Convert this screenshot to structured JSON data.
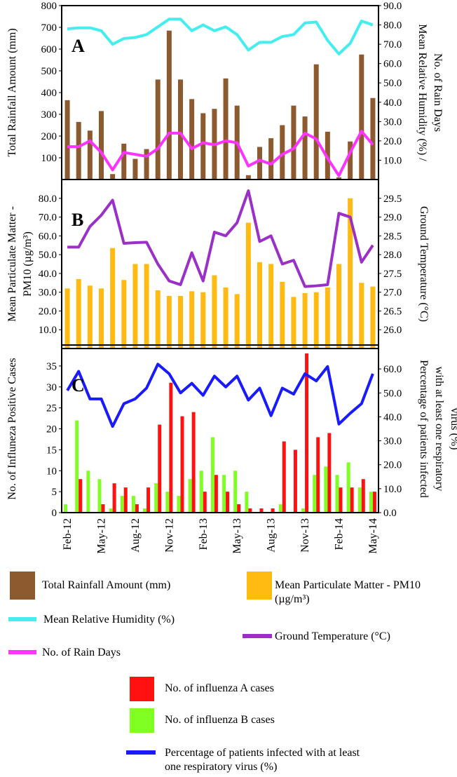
{
  "chart_data": [
    {
      "type": "combo",
      "label": "A",
      "y_label": [
        "Total Rainfall Amount (mm)"
      ],
      "y2_label": [
        "Mean Relative Humidity (%) /",
        "No. of Rain Days"
      ],
      "ylim": [
        0,
        800
      ],
      "yticks": [
        100,
        200,
        300,
        400,
        500,
        600,
        700,
        800
      ],
      "y2lim": [
        0,
        90
      ],
      "y2ticks": [
        {
          "value": 10,
          "label": "10.0"
        },
        {
          "value": 20,
          "label": "20.0"
        },
        {
          "value": 30,
          "label": "30.0"
        },
        {
          "value": 40,
          "label": "40.0"
        },
        {
          "value": 50,
          "label": "50.0"
        },
        {
          "value": 60,
          "label": "60.0"
        },
        {
          "value": 70,
          "label": "70.0"
        },
        {
          "value": 80,
          "label": "80.0"
        },
        {
          "value": 90,
          "label": "90.0"
        }
      ],
      "series": [
        {
          "name": "Total Rainfall Amount (mm)",
          "type": "bar",
          "color": "#8c5a2e",
          "values": [
            365,
            265,
            225,
            315,
            25,
            165,
            95,
            140,
            460,
            685,
            460,
            370,
            305,
            325,
            465,
            340,
            20,
            150,
            190,
            250,
            340,
            290,
            530,
            220,
            10,
            175,
            575,
            375
          ]
        },
        {
          "name": "Mean Relative Humidity (%)",
          "type": "line",
          "axis": "y2",
          "color": "#44eeee",
          "values": [
            78,
            78.5,
            78.5,
            77,
            70,
            73,
            73.5,
            75,
            79,
            83,
            83,
            77,
            80,
            77,
            79,
            75,
            67,
            71,
            71,
            74,
            75,
            81,
            81.5,
            72,
            65,
            70.5,
            82,
            80
          ]
        },
        {
          "name": "No. of Rain Days",
          "type": "line",
          "axis": "y2",
          "color": "#ff33ff",
          "values": [
            17,
            17,
            20,
            14,
            5,
            14,
            13,
            12,
            16,
            24,
            24,
            16,
            19,
            18,
            20,
            19,
            7,
            10,
            8,
            13,
            16,
            24,
            21,
            11,
            2,
            14,
            25,
            18
          ]
        }
      ]
    },
    {
      "type": "combo",
      "label": "B",
      "y_label": [
        "Mean Particulate Matter -",
        "PM10 (µg/m³)"
      ],
      "y2_label": [
        "Ground Temperature (°C)"
      ],
      "ylim": [
        0,
        90
      ],
      "yticks": [
        {
          "value": 10,
          "label": "10.0"
        },
        {
          "value": 20,
          "label": "20.0"
        },
        {
          "value": 30,
          "label": "30.0"
        },
        {
          "value": 40,
          "label": "40.0"
        },
        {
          "value": 50,
          "label": "50.0"
        },
        {
          "value": 60,
          "label": "60.0"
        },
        {
          "value": 70,
          "label": "70.0"
        },
        {
          "value": 80,
          "label": "80.0"
        }
      ],
      "y2lim": [
        25.5,
        30
      ],
      "y2ticks": [
        {
          "value": 26,
          "label": "26.0"
        },
        26.5,
        {
          "value": 27,
          "label": "27.0"
        },
        27.5,
        {
          "value": 28,
          "label": "28.0"
        },
        28.5,
        {
          "value": 29,
          "label": "29.0"
        },
        29.5
      ],
      "series": [
        {
          "name": "Mean Particulate Matter - PM10 (µg/m³)",
          "type": "bar",
          "color": "#ffbb11",
          "values": [
            32,
            37,
            33.5,
            32,
            53.5,
            36.5,
            45,
            45,
            31,
            28,
            28,
            30.5,
            30,
            39,
            32.5,
            29,
            67,
            46,
            45,
            35.5,
            27.5,
            29.5,
            30,
            32.5,
            45,
            80,
            35,
            33
          ]
        },
        {
          "name": "Ground Temperature (°C)",
          "type": "line",
          "axis": "y2",
          "color": "#9b30c8",
          "values": [
            28.2,
            28.2,
            28.75,
            29.05,
            29.45,
            28.3,
            28.32,
            28.33,
            27.75,
            27.3,
            27.2,
            28.05,
            27.3,
            28.6,
            28.5,
            28.85,
            29.7,
            28.35,
            28.5,
            27.75,
            27.85,
            27.15,
            27.17,
            27.2,
            29.1,
            29.0,
            27.8,
            28.25
          ]
        }
      ]
    },
    {
      "type": "combo",
      "label": "C",
      "categories": [
        "Feb-12",
        null,
        null,
        "May-12",
        null,
        null,
        "Aug-12",
        null,
        null,
        "Nov-12",
        null,
        null,
        "Feb-13",
        null,
        null,
        "May-13",
        null,
        null,
        "Aug-13",
        null,
        null,
        "Nov-13",
        null,
        null,
        "Feb-14",
        null,
        null,
        "May-14"
      ],
      "y_label": [
        "No. of Influneza Positive Cases"
      ],
      "y2_label": [
        "Percentage of patients infected",
        "with at least one respiratory",
        "virus (%)"
      ],
      "ylim": [
        0,
        40
      ],
      "yticks": [
        0,
        5,
        10,
        15,
        20,
        25,
        30,
        35
      ],
      "y2lim": [
        0,
        70
      ],
      "y2ticks": [
        {
          "value": 0,
          "label": "0.0"
        },
        {
          "value": 10,
          "label": "10.0"
        },
        {
          "value": 20,
          "label": "20.0"
        },
        {
          "value": 30,
          "label": "30.0"
        },
        {
          "value": 40,
          "label": "40.0"
        },
        {
          "value": 50,
          "label": "50.0"
        },
        {
          "value": 60,
          "label": "60.0"
        }
      ],
      "series": [
        {
          "name": "No. of influenza B cases",
          "type": "bar",
          "color": "#80ff22",
          "values": [
            2,
            22,
            10,
            8,
            1,
            4,
            4,
            1,
            7,
            5,
            4,
            8,
            10,
            18,
            9,
            10,
            5,
            0,
            0,
            2,
            0,
            1,
            9,
            11,
            9,
            12,
            6,
            5
          ]
        },
        {
          "name": "No. of influenza A cases",
          "type": "bar",
          "color": "#ff1111",
          "values": [
            0,
            8,
            0,
            2,
            7,
            6,
            2,
            6,
            21,
            31,
            23,
            24,
            5,
            9,
            5,
            2,
            1,
            1,
            1,
            17,
            15,
            38,
            18,
            19,
            6,
            6,
            8,
            5
          ]
        },
        {
          "name": "Percentage of patients infected with at least one respiratory virus (%)",
          "type": "line",
          "axis": "y2",
          "color": "#1a1aff",
          "values": [
            51,
            59,
            47.5,
            47.5,
            36,
            45.5,
            47.5,
            52,
            62,
            58,
            50,
            54,
            49,
            57,
            52.5,
            57,
            47,
            52,
            40.5,
            52,
            49.5,
            58,
            55,
            61,
            37,
            41.5,
            45.5,
            58
          ]
        }
      ]
    }
  ]
}
